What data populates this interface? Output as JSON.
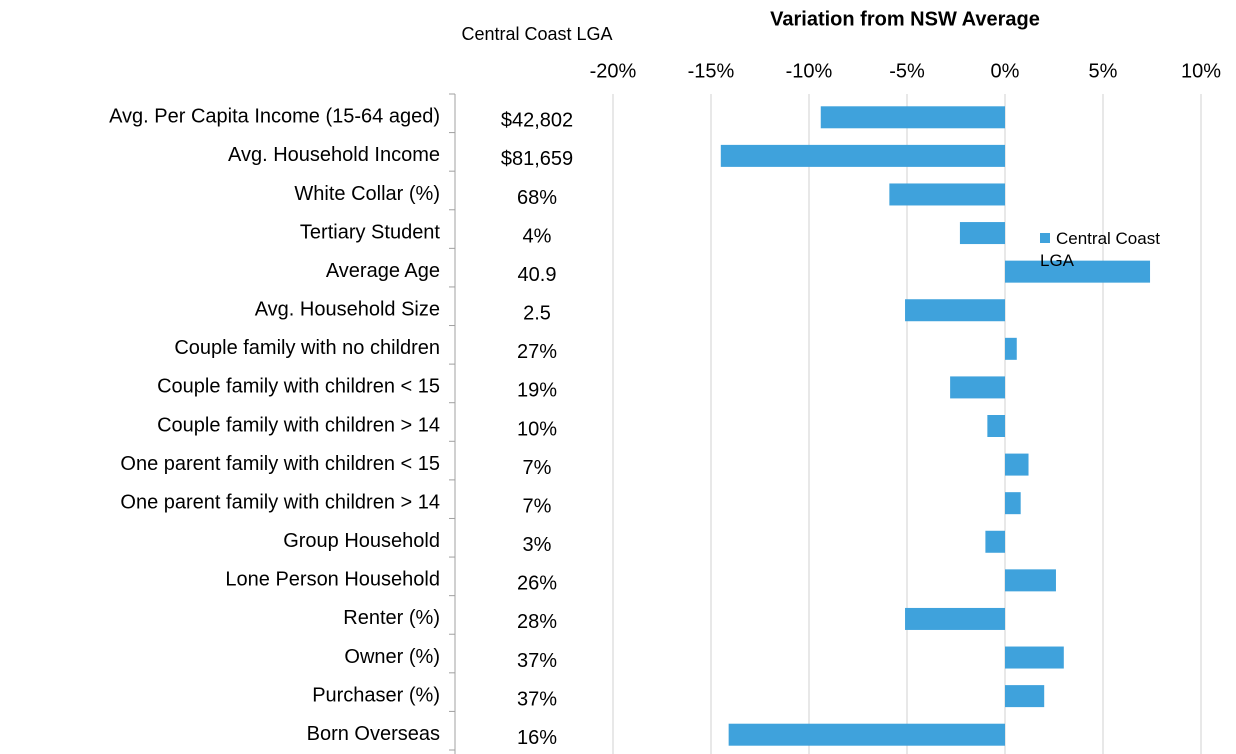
{
  "chart_data": {
    "type": "hbar",
    "title": "Variation from NSW Average",
    "column_header": "Central Coast LGA",
    "categories": [
      "Avg. Per Capita Income (15-64 aged)",
      "Avg. Household Income",
      "White Collar (%)",
      "Tertiary Student",
      "Average Age",
      "Avg. Household Size",
      "Couple family with no children",
      "Couple family with children < 15",
      "Couple family with children > 14",
      "One parent family with children < 15",
      "One parent family with children > 14",
      "Group Household",
      "Lone Person Household",
      "Renter (%)",
      "Owner (%)",
      "Purchaser (%)",
      "Born Overseas"
    ],
    "column_values": [
      "$42,802",
      "$81,659",
      "68%",
      "4%",
      "40.9",
      "2.5",
      "27%",
      "19%",
      "10%",
      "7%",
      "7%",
      "3%",
      "26%",
      "28%",
      "37%",
      "37%",
      "16%"
    ],
    "series": [
      {
        "name": "Central Coast LGA",
        "color": "#3fa2dc",
        "values": [
          -9.4,
          -14.5,
          -5.9,
          -2.3,
          7.4,
          -5.1,
          0.6,
          -2.8,
          -0.9,
          1.2,
          0.8,
          -1.0,
          2.6,
          -5.1,
          3.0,
          2.0,
          -14.1
        ]
      }
    ],
    "xlim": [
      -20,
      10
    ],
    "xticks": [
      {
        "value": -20,
        "label": "-20%"
      },
      {
        "value": -15,
        "label": "-15%"
      },
      {
        "value": -10,
        "label": "-10%"
      },
      {
        "value": -5,
        "label": "-5%"
      },
      {
        "value": 0,
        "label": "0%"
      },
      {
        "value": 5,
        "label": "5%"
      },
      {
        "value": 10,
        "label": "10%"
      }
    ],
    "grid": true,
    "legend": "right"
  }
}
